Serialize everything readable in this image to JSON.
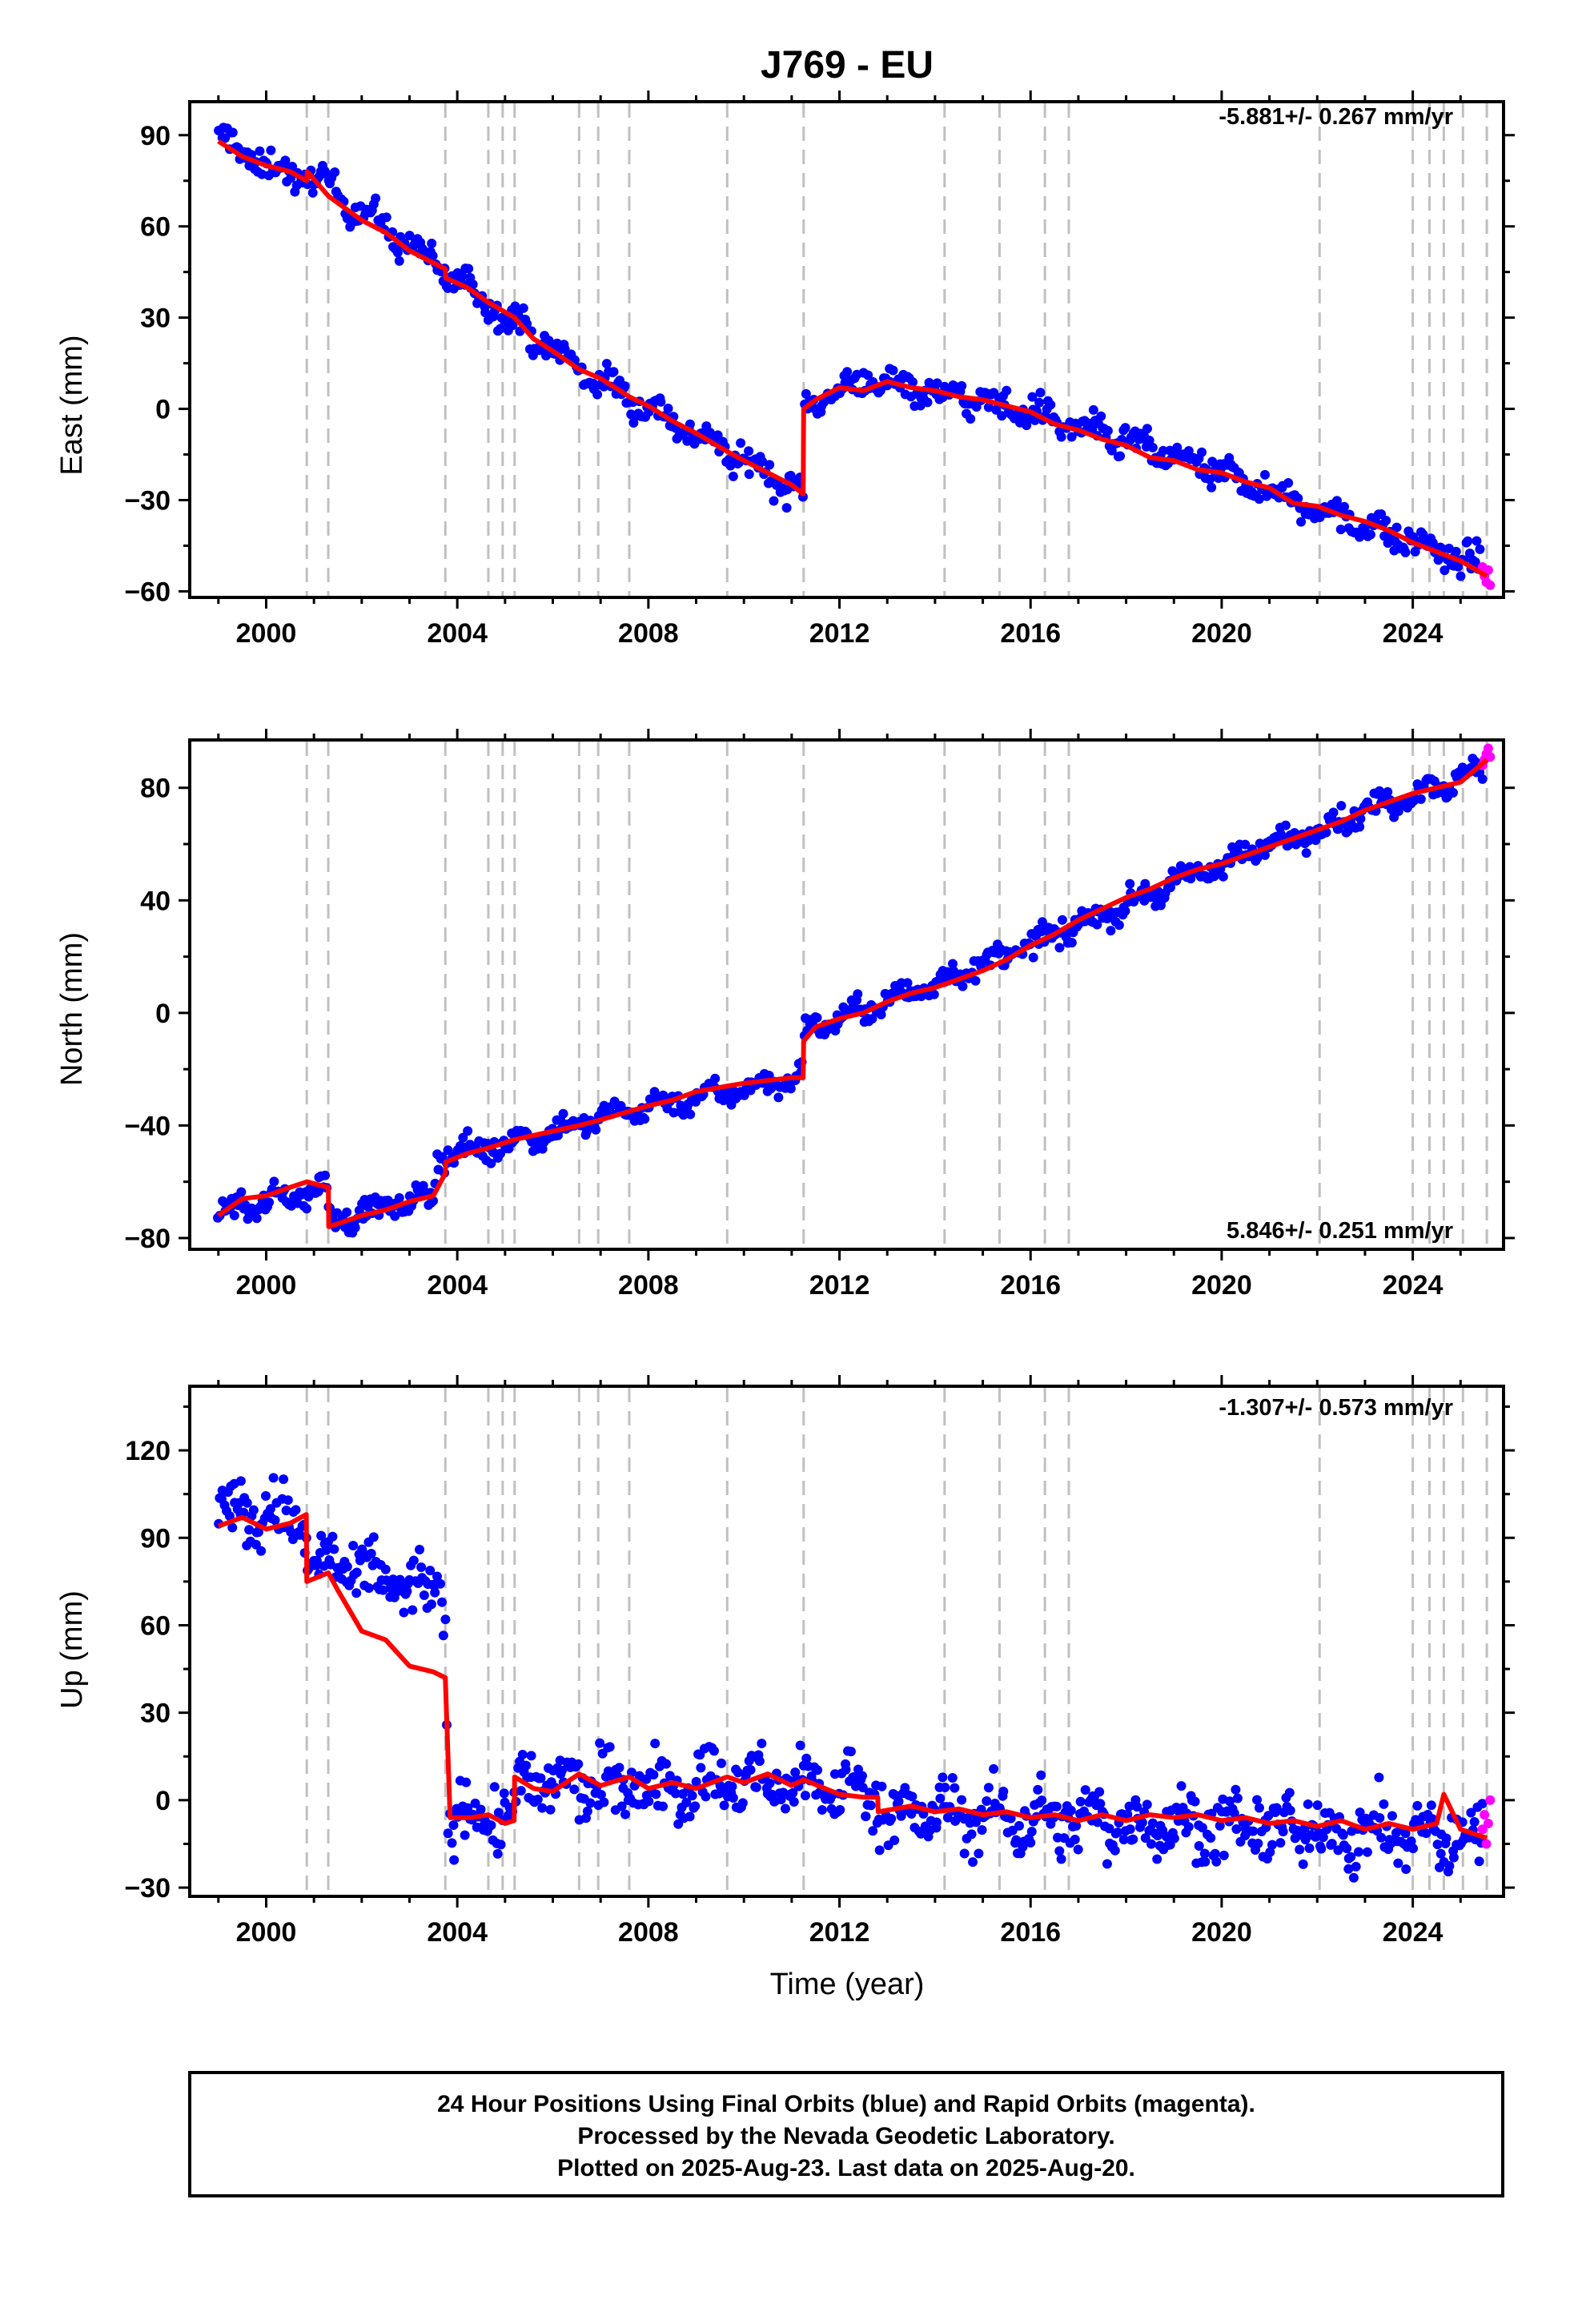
{
  "title": "J769 - EU",
  "x_axis_label": "Time (year)",
  "footer_lines": [
    "24 Hour Positions Using Final Orbits (blue) and Rapid Orbits (magenta).",
    "Processed by the Nevada Geodetic Laboratory.",
    "Plotted on 2025-Aug-23. Last data on 2025-Aug-20."
  ],
  "colors": {
    "final": "#0000ff",
    "rapid": "#ff00ff",
    "model": "#ff0000",
    "event_lines": "#c0c0c0"
  },
  "chart_data": [
    {
      "type": "scatter",
      "component": "East",
      "ylabel": "East (mm)",
      "rate_label": "-5.881+/- 0.267 mm/yr",
      "rate_position": "top-right",
      "xlim": [
        1998.4,
        2025.9
      ],
      "ylim": [
        -62,
        101
      ],
      "x_ticks": [
        2000,
        2004,
        2008,
        2012,
        2016,
        2020,
        2024
      ],
      "y_ticks": [
        -60,
        -30,
        0,
        30,
        60,
        90
      ],
      "y_tick_labels": [
        "−60",
        "−30",
        "0",
        "30",
        "60",
        "90"
      ],
      "event_lines_x": [
        2000.85,
        2001.3,
        2003.75,
        2004.65,
        2004.95,
        2005.2,
        2006.55,
        2006.95,
        2007.6,
        2009.65,
        2011.25,
        2014.2,
        2015.35,
        2016.3,
        2016.8,
        2022.05,
        2024.0,
        2024.35,
        2024.65,
        2025.05,
        2025.55
      ],
      "model_line": {
        "x": [
          1999.0,
          1999.5,
          2000.0,
          2000.5,
          2000.85,
          2000.86,
          2001.3,
          2002.0,
          2002.5,
          2003.0,
          2003.75,
          2003.76,
          2004.2,
          2004.65,
          2005.2,
          2005.6,
          2006.0,
          2006.55,
          2007.0,
          2007.6,
          2008.0,
          2008.5,
          2009.0,
          2009.65,
          2010.0,
          2010.5,
          2011.0,
          2011.24,
          2011.25,
          2011.5,
          2012.0,
          2012.5,
          2013.0,
          2013.5,
          2014.0,
          2014.5,
          2015.0,
          2015.5,
          2016.0,
          2016.5,
          2017.0,
          2017.5,
          2018.0,
          2018.5,
          2019.0,
          2019.5,
          2020.0,
          2020.5,
          2021.0,
          2021.5,
          2022.0,
          2022.5,
          2023.0,
          2023.5,
          2024.0,
          2024.5,
          2025.0,
          2025.55
        ],
        "y": [
          88,
          83,
          80,
          78,
          75,
          78,
          70,
          62,
          58,
          52,
          46,
          43,
          40,
          35,
          30,
          23,
          19,
          13,
          10,
          4,
          1,
          -4,
          -8,
          -14,
          -17,
          -21,
          -25,
          -28,
          0,
          3,
          7,
          6,
          9,
          7,
          6,
          4,
          3,
          1,
          -1,
          -5,
          -7,
          -10,
          -12,
          -16,
          -17,
          -20,
          -21,
          -24,
          -26,
          -31,
          -32,
          -35,
          -37,
          -40,
          -44,
          -47,
          -50,
          -55
        ]
      },
      "scatter": {
        "start": 1999.0,
        "end": 2025.45,
        "n": 700,
        "anchors_x": [
          1999.0,
          2000.0,
          2000.85,
          2000.86,
          2003.75,
          2004.65,
          2006.55,
          2009.65,
          2011.24,
          2011.25,
          2012.0,
          2013.0,
          2016.0,
          2020.0,
          2024.0,
          2025.45
        ],
        "anchors_y": [
          89,
          80,
          75,
          78,
          45,
          35,
          13,
          -14,
          -28,
          0,
          7,
          9,
          -1,
          -21,
          -44,
          -52
        ],
        "noise": 3.4,
        "seasonal": 2.5
      },
      "rapid_points": {
        "x": [
          2025.46,
          2025.5,
          2025.54,
          2025.58,
          2025.62
        ],
        "y": [
          -52,
          -55,
          -57,
          -53,
          -58
        ]
      }
    },
    {
      "type": "scatter",
      "component": "North",
      "ylabel": "North (mm)",
      "rate_label": "5.846+/- 0.251 mm/yr",
      "rate_position": "bottom-right",
      "xlim": [
        1998.4,
        2025.9
      ],
      "ylim": [
        -84,
        97
      ],
      "x_ticks": [
        2000,
        2004,
        2008,
        2012,
        2016,
        2020,
        2024
      ],
      "y_ticks": [
        -80,
        -40,
        0,
        40,
        80
      ],
      "y_tick_labels": [
        "−80",
        "−40",
        "0",
        "40",
        "80"
      ],
      "event_lines_x": [
        2000.85,
        2001.3,
        2003.75,
        2004.65,
        2004.95,
        2005.2,
        2006.55,
        2006.95,
        2007.6,
        2009.65,
        2011.25,
        2014.2,
        2015.35,
        2016.3,
        2016.8,
        2022.05,
        2024.0,
        2024.35,
        2024.65,
        2025.05,
        2025.55
      ],
      "model_line": {
        "x": [
          1999.0,
          1999.5,
          2000.0,
          2000.5,
          2000.85,
          2001.3,
          2001.31,
          2002.0,
          2002.5,
          2003.0,
          2003.5,
          2003.75,
          2003.76,
          2004.2,
          2004.65,
          2005.2,
          2006.0,
          2006.55,
          2007.0,
          2007.6,
          2008.0,
          2008.5,
          2009.0,
          2009.65,
          2010.0,
          2010.5,
          2011.0,
          2011.24,
          2011.25,
          2011.5,
          2012.0,
          2012.5,
          2013.0,
          2013.5,
          2014.0,
          2014.5,
          2015.0,
          2015.5,
          2016.0,
          2016.5,
          2017.0,
          2017.5,
          2018.0,
          2018.5,
          2019.0,
          2019.5,
          2020.0,
          2020.5,
          2021.0,
          2021.5,
          2022.0,
          2022.5,
          2023.0,
          2023.5,
          2024.0,
          2024.5,
          2025.0,
          2025.55
        ],
        "y": [
          -72,
          -66,
          -65,
          -62,
          -60,
          -62,
          -76,
          -72,
          -70,
          -67,
          -65,
          -57,
          -53,
          -50,
          -48,
          -45,
          -42,
          -40,
          -38,
          -35,
          -33,
          -31,
          -28,
          -26,
          -25,
          -24,
          -23,
          -23,
          -10,
          -5,
          -2,
          0,
          4,
          7,
          9,
          12,
          15,
          19,
          24,
          28,
          33,
          37,
          41,
          44,
          48,
          51,
          53,
          56,
          59,
          62,
          65,
          68,
          72,
          75,
          78,
          80,
          82,
          90
        ]
      },
      "scatter": {
        "start": 1999.0,
        "end": 2025.45,
        "n": 700,
        "anchors_x": [
          1999.0,
          2001.3,
          2001.31,
          2003.5,
          2003.6,
          2004.65,
          2008.0,
          2011.24,
          2011.25,
          2013.0,
          2016.0,
          2020.0,
          2024.0,
          2025.45
        ],
        "anchors_y": [
          -71,
          -62,
          -74,
          -65,
          -50,
          -48,
          -33,
          -23,
          -6,
          4,
          24,
          53,
          78,
          86
        ],
        "noise": 3.0,
        "seasonal": 2.2
      },
      "rapid_points": {
        "x": [
          2025.46,
          2025.5,
          2025.54,
          2025.58,
          2025.62
        ],
        "y": [
          88,
          90,
          92,
          94,
          91
        ]
      }
    },
    {
      "type": "scatter",
      "component": "Up",
      "ylabel": "Up (mm)",
      "rate_label": "-1.307+/- 0.573 mm/yr",
      "rate_position": "top-right",
      "xlim": [
        1998.4,
        2025.9
      ],
      "ylim": [
        -33,
        142
      ],
      "x_ticks": [
        2000,
        2004,
        2008,
        2012,
        2016,
        2020,
        2024
      ],
      "y_ticks": [
        -30,
        0,
        30,
        60,
        90,
        120
      ],
      "y_tick_labels": [
        "−30",
        "0",
        "30",
        "60",
        "90",
        "120"
      ],
      "event_lines_x": [
        2000.85,
        2001.3,
        2003.75,
        2004.65,
        2004.95,
        2005.2,
        2006.55,
        2006.95,
        2007.6,
        2009.65,
        2011.25,
        2014.2,
        2015.35,
        2016.3,
        2016.8,
        2022.05,
        2024.0,
        2024.35,
        2024.65,
        2025.05,
        2025.55
      ],
      "model_line": {
        "x": [
          1999.0,
          1999.5,
          2000.0,
          2000.5,
          2000.84,
          2000.85,
          2001.3,
          2001.5,
          2002.0,
          2002.5,
          2003.0,
          2003.5,
          2003.75,
          2003.85,
          2004.3,
          2004.65,
          2005.0,
          2005.19,
          2005.2,
          2005.6,
          2006.0,
          2006.55,
          2007.0,
          2007.6,
          2008.0,
          2008.5,
          2009.0,
          2009.65,
          2010.0,
          2010.5,
          2011.0,
          2011.25,
          2012.0,
          2012.5,
          2012.8,
          2012.81,
          2013.5,
          2014.0,
          2014.5,
          2015.0,
          2015.5,
          2016.0,
          2016.5,
          2017.0,
          2017.5,
          2018.0,
          2018.5,
          2019.0,
          2019.5,
          2020.0,
          2020.5,
          2021.0,
          2021.5,
          2022.0,
          2022.5,
          2023.0,
          2023.5,
          2024.0,
          2024.5,
          2024.65,
          2025.0,
          2025.55
        ],
        "y": [
          94,
          97,
          93,
          95,
          98,
          75,
          78,
          72,
          58,
          55,
          46,
          44,
          42,
          -6,
          -6,
          -5,
          -8,
          -7,
          8,
          4,
          3,
          9,
          5,
          8,
          4,
          6,
          4,
          8,
          6,
          9,
          5,
          7,
          2,
          1,
          1,
          -4,
          -2,
          -4,
          -3,
          -5,
          -4,
          -6,
          -5,
          -7,
          -5,
          -7,
          -5,
          -6,
          -5,
          -7,
          -6,
          -8,
          -7,
          -9,
          -7,
          -10,
          -8,
          -10,
          -8,
          2,
          -10,
          -13
        ]
      },
      "scatter": {
        "start": 1999.0,
        "end": 2025.45,
        "n": 820,
        "anchors_x": [
          1999.0,
          2000.84,
          2000.85,
          2001.5,
          2003.7,
          2003.75,
          2003.8,
          2005.19,
          2005.2,
          2011.25,
          2012.8,
          2012.81,
          2025.45
        ],
        "anchors_y": [
          100,
          95,
          80,
          80,
          70,
          60,
          -5,
          -6,
          5,
          6,
          3,
          -4,
          -13
        ],
        "noise": 7.5,
        "seasonal": 4.5
      },
      "rapid_points": {
        "x": [
          2025.46,
          2025.5,
          2025.54,
          2025.58,
          2025.62
        ],
        "y": [
          -10,
          -5,
          -15,
          -8,
          0
        ]
      }
    }
  ]
}
